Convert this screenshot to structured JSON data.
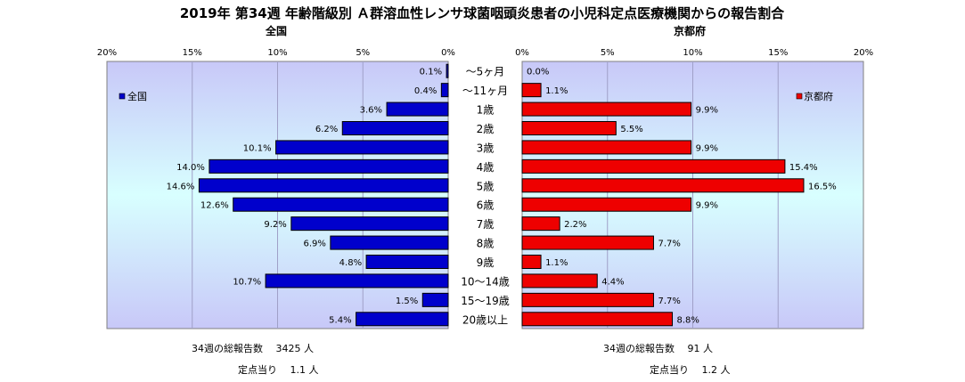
{
  "chart_data": {
    "type": "bar",
    "title": "2019年 第34週 年齢階級別 Ａ群溶血性レンサ球菌咽頭炎患者の小児科定点医療機関からの報告割合",
    "categories": [
      "～5ヶ月",
      "～11ヶ月",
      "1歳",
      "2歳",
      "3歳",
      "4歳",
      "5歳",
      "6歳",
      "7歳",
      "8歳",
      "9歳",
      "10～14歳",
      "15～19歳",
      "20歳以上"
    ],
    "series": [
      {
        "name": "全国",
        "values": [
          0.1,
          0.4,
          3.6,
          6.2,
          10.1,
          14.0,
          14.6,
          12.6,
          9.2,
          6.9,
          4.8,
          10.7,
          1.5,
          5.4
        ],
        "labels": [
          "0.1%",
          "0.4%",
          "3.6%",
          "6.2%",
          "10.1%",
          "14.0%",
          "14.6%",
          "12.6%",
          "9.2%",
          "6.9%",
          "4.8%",
          "10.7%",
          "1.5%",
          "5.4%"
        ],
        "color": "#0000cc"
      },
      {
        "name": "京都府",
        "values": [
          0.0,
          1.1,
          9.9,
          5.5,
          9.9,
          15.4,
          16.5,
          9.9,
          2.2,
          7.7,
          1.1,
          4.4,
          7.7,
          8.8
        ],
        "labels": [
          "0.0%",
          "1.1%",
          "9.9%",
          "5.5%",
          "9.9%",
          "15.4%",
          "16.5%",
          "9.9%",
          "2.2%",
          "7.7%",
          "1.1%",
          "4.4%",
          "7.7%",
          "8.8%"
        ],
        "color": "#ee0000"
      }
    ],
    "xlim": [
      0,
      20
    ],
    "ticks": [
      "0%",
      "5%",
      "10%",
      "15%",
      "20%"
    ],
    "panel_titles": {
      "left": "全国",
      "right": "京都府"
    },
    "legend": {
      "left": "全国",
      "right": "京都府"
    },
    "grid": true,
    "colors": {
      "plot_bg_edge": "#c8c8f8",
      "plot_bg_center": "#d8ffff",
      "gridline": "#a0a0c8"
    }
  },
  "footer": {
    "left_total": "34週の総報告数　 3425 人",
    "left_per": "定点当り　 1.1 人",
    "right_total": "34週の総報告数　 91 人",
    "right_per": "定点当り　 1.2 人"
  }
}
